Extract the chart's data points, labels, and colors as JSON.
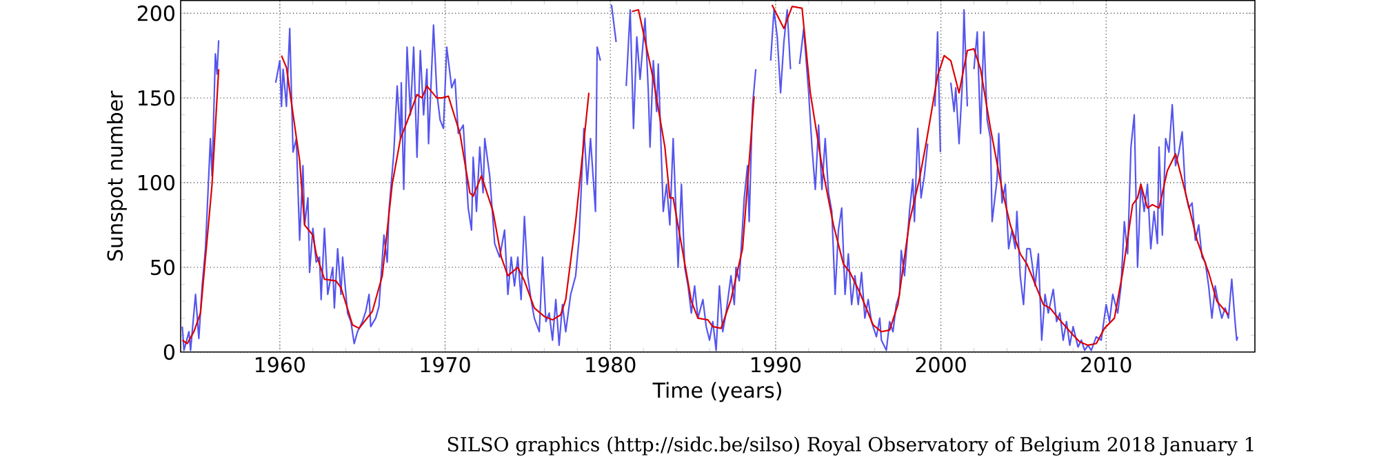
{
  "chart_data": {
    "type": "line",
    "xlabel": "Time (years)",
    "ylabel": "Sunspot number",
    "annotations": [
      "SILSO graphics (http://sidc.be/silso)  Royal Observatory of Belgium  2018 January 1"
    ],
    "xlim": [
      1954,
      2019
    ],
    "ylim": [
      0,
      207.5
    ],
    "xticks": [
      1960,
      1970,
      1980,
      1990,
      2000,
      2010
    ],
    "yticks": [
      0,
      50,
      100,
      150,
      200
    ],
    "grid": true,
    "series": [
      {
        "color": "#5555ee",
        "x": [
          1954.1,
          1954.2,
          1954.5,
          1954.6,
          1954.9,
          1955.1,
          1955.3,
          1955.5,
          1955.8,
          1955.9,
          1956.1,
          1956.2,
          1956.3,
          1956.5,
          1959.7,
          1959.75,
          1960.0,
          1960.1,
          1960.2,
          1960.4,
          1960.6,
          1960.8,
          1961.0,
          1961.2,
          1961.4,
          1961.5,
          1961.7,
          1961.8,
          1962.0,
          1962.2,
          1962.4,
          1962.5,
          1962.7,
          1962.9,
          1963.2,
          1963.3,
          1963.5,
          1963.7,
          1963.8,
          1964.1,
          1964.3,
          1964.5,
          1964.7,
          1965.0,
          1965.2,
          1965.4,
          1965.5,
          1965.8,
          1966.0,
          1966.3,
          1966.5,
          1966.6,
          1966.9,
          1967.1,
          1967.3,
          1967.35,
          1967.5,
          1967.7,
          1967.9,
          1968.1,
          1968.3,
          1968.5,
          1968.7,
          1968.9,
          1969.0,
          1969.3,
          1969.5,
          1969.7,
          1969.9,
          1970.1,
          1970.4,
          1970.6,
          1970.8,
          1971.1,
          1971.4,
          1971.6,
          1971.7,
          1971.9,
          1972.1,
          1972.3,
          1972.4,
          1972.7,
          1973.0,
          1973.3,
          1973.6,
          1973.8,
          1974.0,
          1974.2,
          1974.4,
          1974.6,
          1974.8,
          1975.0,
          1975.2,
          1975.4,
          1975.7,
          1975.9,
          1976.1,
          1976.3,
          1976.5,
          1976.7,
          1976.9,
          1977.1,
          1977.3,
          1977.6,
          1977.9,
          1978.1,
          1978.4,
          1978.6,
          1978.8,
          1979.1,
          1979.2,
          1979.4,
          1979.5,
          1980.07,
          1980.35,
          1980.5,
          1980.96,
          1981.2,
          1981.4,
          1981.6,
          1981.8,
          1982.1,
          1982.3,
          1982.4,
          1982.6,
          1982.8,
          1982.9,
          1983.2,
          1983.4,
          1983.6,
          1983.8,
          1984.1,
          1984.3,
          1984.5,
          1984.7,
          1984.9,
          1985.1,
          1985.3,
          1985.6,
          1985.8,
          1986.0,
          1986.2,
          1986.4,
          1986.6,
          1986.8,
          1987.0,
          1987.3,
          1987.5,
          1987.6,
          1987.8,
          1988.1,
          1988.3,
          1988.4,
          1988.6,
          1988.8,
          1989.0,
          1989.7,
          1989.9,
          1990.1,
          1990.3,
          1990.5,
          1990.7,
          1990.9,
          1991.1,
          1991.45,
          1991.7,
          1992.0,
          1992.2,
          1992.4,
          1992.6,
          1992.8,
          1993.0,
          1993.2,
          1993.4,
          1993.6,
          1993.8,
          1994.0,
          1994.2,
          1994.4,
          1994.6,
          1994.8,
          1995.0,
          1995.2,
          1995.4,
          1995.6,
          1995.8,
          1996.1,
          1996.3,
          1996.4,
          1996.7,
          1996.9,
          1997.1,
          1997.3,
          1997.5,
          1997.6,
          1997.8,
          1998.1,
          1998.3,
          1998.4,
          1998.6,
          1998.8,
          1999.0,
          1999.2,
          1999.36,
          1999.64,
          1999.8,
          1999.97,
          2000.15,
          2000.6,
          2000.8,
          2000.9,
          2001.1,
          2001.3,
          2001.4,
          2001.6,
          2001.75,
          2002.0,
          2002.2,
          2002.4,
          2002.6,
          2002.8,
          2003.0,
          2003.1,
          2003.4,
          2003.5,
          2003.7,
          2003.9,
          2004.1,
          2004.3,
          2004.5,
          2004.6,
          2004.8,
          2005.0,
          2005.2,
          2005.4,
          2005.7,
          2005.9,
          2006.1,
          2006.3,
          2006.5,
          2006.8,
          2007.0,
          2007.2,
          2007.4,
          2007.6,
          2007.8,
          2008.0,
          2008.3,
          2008.5,
          2008.7,
          2008.9,
          2009.1,
          2009.4,
          2009.7,
          2010.0,
          2010.2,
          2010.4,
          2010.7,
          2010.9,
          2011.1,
          2011.3,
          2011.5,
          2011.7,
          2011.9,
          2012.1,
          2012.3,
          2012.5,
          2012.7,
          2012.9,
          2013.1,
          2013.2,
          2013.4,
          2013.6,
          2013.8,
          2014.0,
          2014.2,
          2014.4,
          2014.6,
          2014.8,
          2015.0,
          2015.2,
          2015.4,
          2015.6,
          2015.8,
          2016.0,
          2016.2,
          2016.4,
          2016.6,
          2016.8,
          2017.0,
          2017.2,
          2017.4,
          2017.6,
          2017.8,
          2017.9,
          2017.96
        ],
        "values": [
          15,
          1,
          12,
          1,
          34,
          8,
          39,
          61,
          126,
          104,
          176,
          164,
          184,
          null,
          null,
          159,
          172,
          145,
          167,
          145,
          191,
          118,
          126,
          66,
          110,
          75,
          91,
          47,
          73,
          53,
          56,
          31,
          73,
          34,
          50,
          26,
          61,
          34,
          56,
          23,
          18,
          5,
          12,
          18,
          24,
          34,
          15,
          20,
          27,
          69,
          53,
          83,
          118,
          157,
          126,
          159,
          96,
          180,
          140,
          180,
          115,
          178,
          140,
          167,
          123,
          193,
          153,
          137,
          132,
          180,
          156,
          161,
          129,
          134,
          85,
          72,
          115,
          83,
          121,
          94,
          126,
          104,
          64,
          56,
          72,
          34,
          56,
          39,
          56,
          31,
          80,
          45,
          31,
          20,
          12,
          56,
          18,
          23,
          7,
          31,
          4,
          28,
          12,
          34,
          45,
          66,
          132,
          99,
          126,
          83,
          180,
          172,
          null,
          205,
          183,
          null,
          157,
          202,
          132,
          186,
          161,
          197,
          153,
          121,
          172,
          142,
          170,
          83,
          99,
          75,
          126,
          50,
          99,
          50,
          39,
          23,
          39,
          20,
          31,
          15,
          7,
          18,
          1,
          39,
          12,
          23,
          45,
          28,
          50,
          42,
          91,
          110,
          77,
          145,
          167,
          null,
          172,
          202,
          186,
          153,
          183,
          202,
          167,
          null,
          170,
          191,
          153,
          121,
          96,
          134,
          96,
          126,
          94,
          83,
          34,
          72,
          85,
          34,
          58,
          28,
          45,
          28,
          47,
          20,
          31,
          18,
          9,
          20,
          7,
          1,
          18,
          12,
          28,
          34,
          60,
          45,
          83,
          102,
          77,
          132,
          91,
          104,
          123,
          null,
          145,
          189,
          118,
          null,
          159,
          142,
          156,
          123,
          159,
          202,
          145,
          null,
          167,
          189,
          129,
          189,
          137,
          126,
          77,
          102,
          129,
          88,
          99,
          61,
          72,
          61,
          83,
          45,
          28,
          61,
          61,
          39,
          58,
          7,
          34,
          23,
          37,
          18,
          23,
          7,
          18,
          4,
          15,
          3,
          7,
          1,
          4,
          1,
          9,
          7,
          28,
          18,
          34,
          23,
          39,
          77,
          58,
          121,
          140,
          50,
          99,
          83,
          99,
          61,
          83,
          64,
          121,
          69,
          126,
          118,
          146,
          110,
          118,
          130,
          94,
          85,
          88,
          66,
          75,
          56,
          53,
          39,
          20,
          39,
          28,
          20,
          26,
          20,
          43,
          18,
          7,
          9
        ]
      },
      {
        "color": "#dd0000",
        "x": [
          1954.1,
          1954.4,
          1954.8,
          1955.2,
          1955.9,
          1956.3,
          1956.5,
          1959.7,
          1960.1,
          1960.4,
          1961.2,
          1961.5,
          1962.0,
          1962.2,
          1962.7,
          1963.4,
          1963.7,
          1964.4,
          1964.8,
          1965.6,
          1966.2,
          1966.8,
          1967.3,
          1967.7,
          1968.3,
          1968.6,
          1968.9,
          1969.5,
          1969.8,
          1970.2,
          1970.9,
          1971.5,
          1971.7,
          1972.2,
          1972.9,
          1973.4,
          1973.8,
          1974.4,
          1974.8,
          1975.4,
          1976.0,
          1976.5,
          1977.0,
          1977.3,
          1977.9,
          1978.7,
          1979.3,
          1981.0,
          1981.3,
          1981.7,
          1982.6,
          1983.3,
          1983.6,
          1983.8,
          1984.4,
          1984.9,
          1985.3,
          1985.9,
          1986.2,
          1986.7,
          1987.3,
          1988.0,
          1988.7,
          1989.1,
          1989.78,
          1990.5,
          1991.0,
          1991.6,
          1992.1,
          1992.8,
          1993.5,
          1994.1,
          1994.5,
          1995.1,
          1995.9,
          1996.4,
          1996.9,
          1997.4,
          1998.1,
          1998.7,
          1999.1,
          1999.8,
          2000.2,
          2000.6,
          2001.1,
          2001.6,
          2002.0,
          2002.4,
          2003.0,
          2003.7,
          2004.2,
          2004.8,
          2005.2,
          2005.5,
          2006.2,
          2006.6,
          2007.1,
          2008.0,
          2008.4,
          2008.9,
          2009.4,
          2009.9,
          2010.5,
          2011.0,
          2011.6,
          2011.9,
          2012.1,
          2012.5,
          2012.8,
          2013.2,
          2013.7,
          2014.2,
          2014.8,
          2015.5,
          2016.2,
          2016.7,
          2017.4
        ],
        "values": [
          7,
          5,
          12,
          23,
          99,
          167,
          null,
          null,
          175,
          168,
          113,
          75,
          69,
          58,
          43,
          42,
          38,
          16,
          14,
          24,
          45,
          99,
          126,
          136,
          152,
          150,
          157,
          150,
          150,
          151,
          129,
          94,
          92,
          104,
          83,
          56,
          45,
          50,
          42,
          26,
          21,
          19,
          22,
          31,
          77,
          153,
          null,
          null,
          201,
          202,
          161,
          121,
          91,
          91,
          58,
          30,
          20,
          19,
          15,
          14,
          31,
          61,
          151,
          null,
          205,
          191,
          204,
          203,
          153,
          110,
          75,
          52,
          47,
          35,
          16,
          12,
          13,
          28,
          77,
          102,
          123,
          163,
          175,
          172,
          153,
          178,
          179,
          167,
          132,
          96,
          75,
          58,
          52,
          45,
          28,
          26,
          20,
          10,
          6,
          4,
          5,
          14,
          20,
          47,
          87,
          91,
          99,
          85,
          87,
          85,
          107,
          117,
          94,
          66,
          47,
          30,
          22
        ]
      }
    ]
  }
}
